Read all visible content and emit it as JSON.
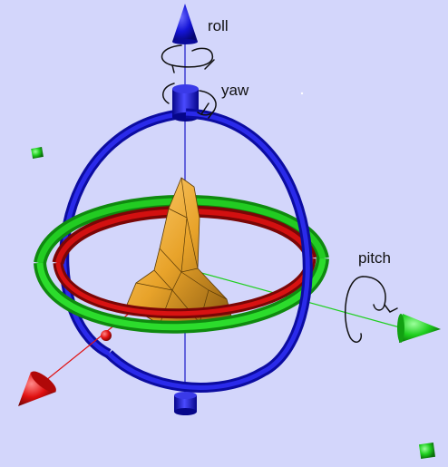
{
  "labels": {
    "roll": "roll",
    "yaw": "yaw",
    "pitch": "pitch"
  },
  "colors": {
    "background": "#d3d6fb",
    "roll_axis": "#1414d6",
    "pitch_axis": "#1fcf1f",
    "lateral_axis": "#e01010",
    "yaw_ring": "#1a1ad0",
    "pitch_ring": "#18b818",
    "roll_ring": "#c80c0c",
    "model": "#e8a32a"
  },
  "icons": {
    "roll_arrow": "curved-rotation-arrow-icon",
    "yaw_arrow": "curved-rotation-arrow-icon",
    "pitch_arrow": "curved-rotation-arrow-icon"
  }
}
